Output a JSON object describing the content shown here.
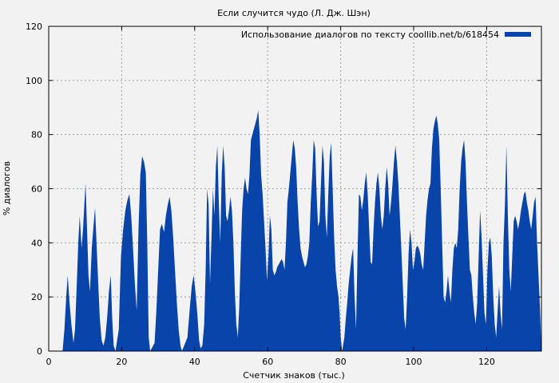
{
  "chart_data": {
    "type": "area",
    "title": "Если случится чудо (Л. Дж. Шэн)",
    "xlabel": "Счетчик знаков (тыс.)",
    "ylabel": "% диалогов",
    "xlim": [
      0,
      135
    ],
    "ylim": [
      0,
      120
    ],
    "x_ticks": [
      0,
      20,
      40,
      60,
      80,
      100,
      120
    ],
    "x_tick_labels": [
      "0",
      "20",
      "40",
      "60",
      "80",
      "100",
      "120"
    ],
    "y_ticks": [
      0,
      20,
      40,
      60,
      80,
      100,
      120
    ],
    "y_tick_labels": [
      "0",
      "20",
      "40",
      "60",
      "80",
      "100",
      "120"
    ],
    "grid": true,
    "legend_position": "top-right",
    "series": [
      {
        "name": "Использование диалогов по тексту coollib.net/b/618454",
        "color": "#0944aa",
        "points": [
          [
            3.8,
            0
          ],
          [
            4.3,
            8
          ],
          [
            4.8,
            20
          ],
          [
            5.2,
            28
          ],
          [
            5.7,
            18
          ],
          [
            6.2,
            10
          ],
          [
            6.8,
            3
          ],
          [
            7.2,
            8
          ],
          [
            7.7,
            25
          ],
          [
            8.1,
            40
          ],
          [
            8.5,
            50
          ],
          [
            9.0,
            38
          ],
          [
            9.4,
            45
          ],
          [
            9.8,
            55
          ],
          [
            10.1,
            62
          ],
          [
            10.5,
            45
          ],
          [
            10.9,
            28
          ],
          [
            11.3,
            22
          ],
          [
            11.8,
            38
          ],
          [
            12.2,
            45
          ],
          [
            12.7,
            53
          ],
          [
            13.1,
            40
          ],
          [
            13.6,
            24
          ],
          [
            14.0,
            12
          ],
          [
            14.5,
            4
          ],
          [
            15.0,
            2
          ],
          [
            15.5,
            5
          ],
          [
            16.0,
            12
          ],
          [
            16.5,
            22
          ],
          [
            17.0,
            28
          ],
          [
            17.4,
            12
          ],
          [
            17.8,
            2
          ],
          [
            18.3,
            0
          ],
          [
            19.2,
            8
          ],
          [
            19.8,
            35
          ],
          [
            20.4,
            45
          ],
          [
            21.0,
            52
          ],
          [
            21.6,
            56
          ],
          [
            22.1,
            58
          ],
          [
            22.6,
            50
          ],
          [
            23.1,
            38
          ],
          [
            23.6,
            25
          ],
          [
            24.1,
            15
          ],
          [
            24.6,
            45
          ],
          [
            25.1,
            65
          ],
          [
            25.6,
            72
          ],
          [
            26.1,
            70
          ],
          [
            26.6,
            66
          ],
          [
            27.0,
            40
          ],
          [
            27.4,
            5
          ],
          [
            27.8,
            0
          ],
          [
            29.0,
            3
          ],
          [
            29.5,
            15
          ],
          [
            30.0,
            30
          ],
          [
            30.5,
            45
          ],
          [
            31.0,
            47
          ],
          [
            31.6,
            44
          ],
          [
            32.1,
            50
          ],
          [
            32.6,
            54
          ],
          [
            33.1,
            57
          ],
          [
            33.6,
            52
          ],
          [
            34.1,
            42
          ],
          [
            34.6,
            30
          ],
          [
            35.1,
            18
          ],
          [
            35.6,
            8
          ],
          [
            36.1,
            2
          ],
          [
            36.5,
            0
          ],
          [
            38.0,
            5
          ],
          [
            38.6,
            15
          ],
          [
            39.2,
            24
          ],
          [
            39.7,
            28
          ],
          [
            40.2,
            22
          ],
          [
            40.7,
            14
          ],
          [
            41.2,
            4
          ],
          [
            41.6,
            1
          ],
          [
            42.1,
            2
          ],
          [
            42.6,
            10
          ],
          [
            43.0,
            30
          ],
          [
            43.4,
            60
          ],
          [
            43.8,
            54
          ],
          [
            44.2,
            25
          ],
          [
            44.6,
            42
          ],
          [
            45.0,
            60
          ],
          [
            45.4,
            50
          ],
          [
            45.8,
            68
          ],
          [
            46.2,
            76
          ],
          [
            46.6,
            55
          ],
          [
            47.0,
            40
          ],
          [
            47.4,
            65
          ],
          [
            47.8,
            76
          ],
          [
            48.2,
            68
          ],
          [
            48.6,
            50
          ],
          [
            49.0,
            48
          ],
          [
            49.4,
            52
          ],
          [
            49.8,
            57
          ],
          [
            50.2,
            52
          ],
          [
            50.6,
            40
          ],
          [
            51.0,
            22
          ],
          [
            51.4,
            10
          ],
          [
            51.8,
            5
          ],
          [
            52.2,
            16
          ],
          [
            52.6,
            35
          ],
          [
            53.0,
            52
          ],
          [
            53.4,
            60
          ],
          [
            53.8,
            64
          ],
          [
            54.2,
            60
          ],
          [
            54.6,
            58
          ],
          [
            55.0,
            65
          ],
          [
            55.4,
            78
          ],
          [
            55.8,
            80
          ],
          [
            56.2,
            82
          ],
          [
            56.6,
            84
          ],
          [
            57.0,
            86
          ],
          [
            57.4,
            89
          ],
          [
            57.8,
            80
          ],
          [
            58.2,
            65
          ],
          [
            58.6,
            58
          ],
          [
            59.0,
            48
          ],
          [
            59.4,
            38
          ],
          [
            59.8,
            26
          ],
          [
            60.2,
            35
          ],
          [
            60.6,
            50
          ],
          [
            61.0,
            45
          ],
          [
            61.4,
            30
          ],
          [
            61.8,
            28
          ],
          [
            62.2,
            29
          ],
          [
            62.6,
            31
          ],
          [
            63.0,
            32
          ],
          [
            63.4,
            33
          ],
          [
            63.8,
            34
          ],
          [
            64.2,
            33
          ],
          [
            64.6,
            30
          ],
          [
            65.0,
            40
          ],
          [
            65.4,
            55
          ],
          [
            65.8,
            60
          ],
          [
            66.2,
            66
          ],
          [
            66.6,
            72
          ],
          [
            67.0,
            78
          ],
          [
            67.4,
            75
          ],
          [
            67.8,
            68
          ],
          [
            68.2,
            55
          ],
          [
            68.6,
            45
          ],
          [
            69.0,
            38
          ],
          [
            69.4,
            35
          ],
          [
            69.8,
            33
          ],
          [
            70.2,
            31
          ],
          [
            70.6,
            32
          ],
          [
            71.0,
            35
          ],
          [
            71.4,
            40
          ],
          [
            71.8,
            55
          ],
          [
            72.2,
            65
          ],
          [
            72.6,
            78
          ],
          [
            73.0,
            75
          ],
          [
            73.4,
            58
          ],
          [
            73.8,
            46
          ],
          [
            74.2,
            48
          ],
          [
            74.6,
            62
          ],
          [
            75.0,
            76
          ],
          [
            75.4,
            70
          ],
          [
            75.8,
            50
          ],
          [
            76.2,
            42
          ],
          [
            76.6,
            58
          ],
          [
            77.0,
            72
          ],
          [
            77.4,
            77
          ],
          [
            77.8,
            60
          ],
          [
            78.2,
            42
          ],
          [
            78.6,
            30
          ],
          [
            79.0,
            24
          ],
          [
            79.4,
            20
          ],
          [
            79.7,
            14
          ],
          [
            80.0,
            5
          ],
          [
            80.4,
            0
          ],
          [
            81.0,
            5
          ],
          [
            81.4,
            12
          ],
          [
            81.8,
            18
          ],
          [
            82.2,
            25
          ],
          [
            82.6,
            30
          ],
          [
            83.0,
            35
          ],
          [
            83.4,
            38
          ],
          [
            83.8,
            20
          ],
          [
            84.2,
            8
          ],
          [
            84.6,
            35
          ],
          [
            85.0,
            58
          ],
          [
            85.4,
            57
          ],
          [
            85.8,
            52
          ],
          [
            86.2,
            56
          ],
          [
            86.6,
            62
          ],
          [
            87.0,
            66
          ],
          [
            87.4,
            58
          ],
          [
            87.8,
            45
          ],
          [
            88.2,
            33
          ],
          [
            88.6,
            32
          ],
          [
            89.0,
            45
          ],
          [
            89.4,
            55
          ],
          [
            89.8,
            62
          ],
          [
            90.2,
            66
          ],
          [
            90.6,
            60
          ],
          [
            91.0,
            50
          ],
          [
            91.4,
            45
          ],
          [
            91.8,
            50
          ],
          [
            92.2,
            60
          ],
          [
            92.6,
            68
          ],
          [
            93.0,
            62
          ],
          [
            93.4,
            50
          ],
          [
            93.8,
            55
          ],
          [
            94.2,
            62
          ],
          [
            94.6,
            70
          ],
          [
            95.0,
            76
          ],
          [
            95.4,
            70
          ],
          [
            95.8,
            62
          ],
          [
            96.2,
            50
          ],
          [
            96.6,
            38
          ],
          [
            97.0,
            25
          ],
          [
            97.4,
            12
          ],
          [
            97.8,
            8
          ],
          [
            98.2,
            20
          ],
          [
            98.6,
            36
          ],
          [
            99.0,
            45
          ],
          [
            99.4,
            40
          ],
          [
            99.8,
            30
          ],
          [
            100.2,
            33
          ],
          [
            100.6,
            38
          ],
          [
            101.0,
            39
          ],
          [
            101.4,
            38
          ],
          [
            101.8,
            36
          ],
          [
            102.2,
            32
          ],
          [
            102.6,
            30
          ],
          [
            103.0,
            40
          ],
          [
            103.4,
            50
          ],
          [
            103.8,
            56
          ],
          [
            104.2,
            60
          ],
          [
            104.6,
            62
          ],
          [
            105.0,
            75
          ],
          [
            105.4,
            82
          ],
          [
            105.8,
            85
          ],
          [
            106.2,
            87
          ],
          [
            106.6,
            84
          ],
          [
            107.0,
            78
          ],
          [
            107.4,
            60
          ],
          [
            107.8,
            40
          ],
          [
            108.2,
            20
          ],
          [
            108.6,
            18
          ],
          [
            109.0,
            22
          ],
          [
            109.4,
            28
          ],
          [
            109.8,
            22
          ],
          [
            110.2,
            18
          ],
          [
            110.6,
            30
          ],
          [
            111.0,
            38
          ],
          [
            111.4,
            40
          ],
          [
            111.8,
            38
          ],
          [
            112.2,
            45
          ],
          [
            112.6,
            60
          ],
          [
            113.0,
            70
          ],
          [
            113.4,
            75
          ],
          [
            113.8,
            78
          ],
          [
            114.2,
            70
          ],
          [
            114.6,
            55
          ],
          [
            115.0,
            42
          ],
          [
            115.4,
            30
          ],
          [
            115.8,
            28
          ],
          [
            116.2,
            20
          ],
          [
            116.6,
            14
          ],
          [
            117.0,
            10
          ],
          [
            117.4,
            18
          ],
          [
            117.8,
            35
          ],
          [
            118.2,
            52
          ],
          [
            118.6,
            42
          ],
          [
            119.0,
            28
          ],
          [
            119.4,
            14
          ],
          [
            119.8,
            10
          ],
          [
            120.2,
            30
          ],
          [
            120.6,
            40
          ],
          [
            121.0,
            42
          ],
          [
            121.4,
            35
          ],
          [
            121.8,
            20
          ],
          [
            122.2,
            10
          ],
          [
            122.6,
            5
          ],
          [
            123.0,
            15
          ],
          [
            123.4,
            24
          ],
          [
            123.8,
            14
          ],
          [
            124.2,
            8
          ],
          [
            124.6,
            40
          ],
          [
            125.0,
            54
          ],
          [
            125.4,
            76
          ],
          [
            125.8,
            50
          ],
          [
            126.2,
            30
          ],
          [
            126.6,
            22
          ],
          [
            127.0,
            35
          ],
          [
            127.4,
            48
          ],
          [
            127.8,
            50
          ],
          [
            128.2,
            48
          ],
          [
            128.6,
            45
          ],
          [
            129.0,
            48
          ],
          [
            129.4,
            52
          ],
          [
            129.8,
            55
          ],
          [
            130.2,
            58
          ],
          [
            130.6,
            59
          ],
          [
            131.0,
            55
          ],
          [
            131.4,
            52
          ],
          [
            131.8,
            48
          ],
          [
            132.2,
            45
          ],
          [
            132.6,
            50
          ],
          [
            133.0,
            55
          ],
          [
            133.4,
            57
          ],
          [
            133.8,
            40
          ],
          [
            134.2,
            28
          ],
          [
            134.6,
            16
          ],
          [
            135.0,
            0
          ]
        ]
      }
    ]
  }
}
